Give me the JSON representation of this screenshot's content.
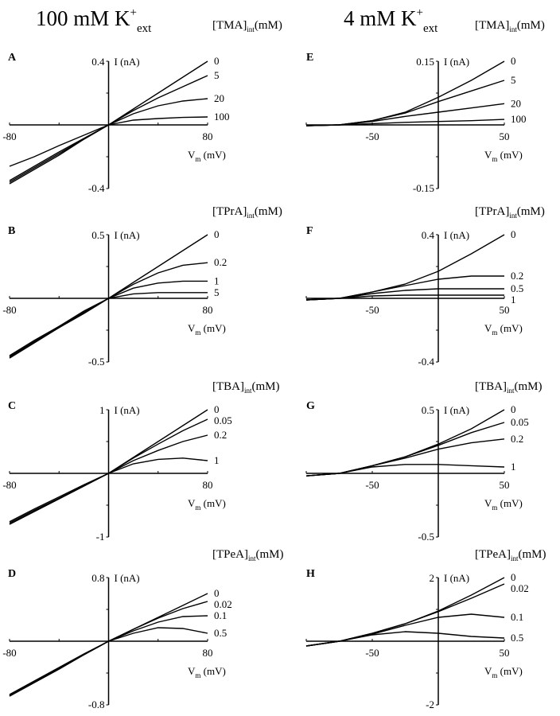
{
  "headers": [
    {
      "main": "100 mM K",
      "sup": "+",
      "sub": "ext"
    },
    {
      "main": "4 mM K",
      "sup": "+",
      "sub": "ext"
    }
  ],
  "chart_data": [
    {
      "type": "line",
      "panel": "A",
      "legend_title": {
        "main": "[TMA]",
        "sub": "int",
        "unit": "(mM)"
      },
      "ylabel": "I (nA)",
      "xlabel": {
        "main": "V",
        "sub": "m",
        "unit": " (mV)"
      },
      "xlim": [
        -80,
        80
      ],
      "ylim": [
        -0.4,
        0.4
      ],
      "xtick_labels": [
        "-80",
        "80"
      ],
      "ytick_labels": [
        "0.4",
        "-0.4"
      ],
      "x": [
        -80,
        -60,
        -40,
        -20,
        0,
        20,
        40,
        60,
        80
      ],
      "series": [
        {
          "name": "0",
          "values": [
            -0.37,
            -0.28,
            -0.19,
            -0.09,
            0,
            0.1,
            0.2,
            0.3,
            0.4
          ]
        },
        {
          "name": "5",
          "values": [
            -0.36,
            -0.27,
            -0.18,
            -0.09,
            0,
            0.09,
            0.17,
            0.24,
            0.31
          ]
        },
        {
          "name": "20",
          "values": [
            -0.35,
            -0.26,
            -0.17,
            -0.085,
            0,
            0.07,
            0.12,
            0.15,
            0.165
          ]
        },
        {
          "name": "100",
          "values": [
            -0.26,
            -0.2,
            -0.13,
            -0.065,
            0,
            0.03,
            0.04,
            0.047,
            0.05
          ]
        }
      ]
    },
    {
      "type": "line",
      "panel": "B",
      "legend_title": {
        "main": "[TPrA]",
        "sub": "int",
        "unit": "(mM)"
      },
      "ylabel": "I (nA)",
      "xlabel": {
        "main": "V",
        "sub": "m",
        "unit": " (mV)"
      },
      "xlim": [
        -80,
        80
      ],
      "ylim": [
        -0.5,
        0.5
      ],
      "xtick_labels": [
        "-80",
        "80"
      ],
      "ytick_labels": [
        "0.5",
        "-0.5"
      ],
      "x": [
        -80,
        -60,
        -40,
        -20,
        0,
        20,
        40,
        60,
        80
      ],
      "series": [
        {
          "name": "0",
          "values": [
            -0.47,
            -0.35,
            -0.23,
            -0.12,
            0,
            0.125,
            0.25,
            0.375,
            0.5
          ]
        },
        {
          "name": "0.2",
          "values": [
            -0.46,
            -0.34,
            -0.23,
            -0.11,
            0,
            0.11,
            0.2,
            0.26,
            0.28
          ]
        },
        {
          "name": "1",
          "values": [
            -0.46,
            -0.34,
            -0.22,
            -0.11,
            0,
            0.08,
            0.12,
            0.135,
            0.135
          ]
        },
        {
          "name": "5",
          "values": [
            -0.45,
            -0.33,
            -0.22,
            -0.1,
            0,
            0.035,
            0.045,
            0.045,
            0.045
          ]
        }
      ]
    },
    {
      "type": "line",
      "panel": "C",
      "legend_title": {
        "main": "[TBA]",
        "sub": "int",
        "unit": "(mM)"
      },
      "ylabel": "I (nA)",
      "xlabel": {
        "main": "V",
        "sub": "m",
        "unit": " (mV)"
      },
      "xlim": [
        -80,
        80
      ],
      "ylim": [
        -1,
        1
      ],
      "xtick_labels": [
        "-80",
        "80"
      ],
      "ytick_labels": [
        "1",
        "-1"
      ],
      "x": [
        -80,
        -60,
        -40,
        -20,
        0,
        20,
        40,
        60,
        80
      ],
      "series": [
        {
          "name": "0",
          "values": [
            -0.8,
            -0.6,
            -0.4,
            -0.2,
            0,
            0.25,
            0.5,
            0.75,
            1.0
          ]
        },
        {
          "name": "0.05",
          "values": [
            -0.8,
            -0.6,
            -0.4,
            -0.2,
            0,
            0.24,
            0.46,
            0.67,
            0.85
          ]
        },
        {
          "name": "0.2",
          "values": [
            -0.78,
            -0.58,
            -0.39,
            -0.19,
            0,
            0.2,
            0.36,
            0.5,
            0.6
          ]
        },
        {
          "name": "1",
          "values": [
            -0.76,
            -0.56,
            -0.37,
            -0.18,
            0,
            0.15,
            0.22,
            0.24,
            0.2
          ]
        }
      ]
    },
    {
      "type": "line",
      "panel": "D",
      "legend_title": {
        "main": "[TPeA]",
        "sub": "int",
        "unit": "(mM)"
      },
      "ylabel": "I (nA)",
      "xlabel": {
        "main": "V",
        "sub": "m",
        "unit": " (mV)"
      },
      "xlim": [
        -80,
        80
      ],
      "ylim": [
        -0.8,
        0.8
      ],
      "xtick_labels": [
        "-80",
        "80"
      ],
      "ytick_labels": [
        "0.8",
        "-0.8"
      ],
      "x": [
        -80,
        -60,
        -40,
        -20,
        0,
        20,
        40,
        60,
        80
      ],
      "series": [
        {
          "name": "0",
          "values": [
            -0.69,
            -0.52,
            -0.35,
            -0.17,
            0,
            0.15,
            0.3,
            0.45,
            0.6
          ]
        },
        {
          "name": "0.02",
          "values": [
            -0.69,
            -0.52,
            -0.35,
            -0.17,
            0,
            0.15,
            0.29,
            0.41,
            0.5
          ]
        },
        {
          "name": "0.1",
          "values": [
            -0.68,
            -0.51,
            -0.34,
            -0.17,
            0,
            0.13,
            0.24,
            0.31,
            0.32
          ]
        },
        {
          "name": "0.5",
          "values": [
            -0.67,
            -0.5,
            -0.33,
            -0.16,
            0,
            0.1,
            0.17,
            0.16,
            0.1
          ]
        }
      ]
    },
    {
      "type": "line",
      "panel": "E",
      "legend_title": {
        "main": "[TMA]",
        "sub": "int",
        "unit": "(mM)"
      },
      "ylabel": "I (nA)",
      "xlabel": {
        "main": "V",
        "sub": "m",
        "unit": " (mV)"
      },
      "xlim": [
        -100,
        50
      ],
      "ylim": [
        -0.15,
        0.15
      ],
      "xtick_labels": [
        "-50",
        "50"
      ],
      "ytick_labels": [
        "0.15",
        "-0.15"
      ],
      "x": [
        -100,
        -75,
        -50,
        -25,
        0,
        25,
        50
      ],
      "series": [
        {
          "name": "0",
          "values": [
            -0.002,
            0,
            0.01,
            0.03,
            0.065,
            0.105,
            0.15
          ]
        },
        {
          "name": "5",
          "values": [
            -0.002,
            0,
            0.01,
            0.028,
            0.055,
            0.08,
            0.105
          ]
        },
        {
          "name": "20",
          "values": [
            -0.002,
            0,
            0.008,
            0.02,
            0.03,
            0.04,
            0.05
          ]
        },
        {
          "name": "100",
          "values": [
            -0.002,
            0,
            0.003,
            0.006,
            0.008,
            0.01,
            0.013
          ]
        }
      ]
    },
    {
      "type": "line",
      "panel": "F",
      "legend_title": {
        "main": "[TPrA]",
        "sub": "int",
        "unit": "(mM)"
      },
      "ylabel": "I (nA)",
      "xlabel": {
        "main": "V",
        "sub": "m",
        "unit": " (mV)"
      },
      "xlim": [
        -100,
        50
      ],
      "ylim": [
        -0.4,
        0.4
      ],
      "xtick_labels": [
        "-50",
        "50"
      ],
      "ytick_labels": [
        "0.4",
        "-0.4"
      ],
      "x": [
        -100,
        -75,
        -50,
        -25,
        0,
        25,
        50
      ],
      "series": [
        {
          "name": "0",
          "values": [
            -0.01,
            0,
            0.04,
            0.09,
            0.17,
            0.28,
            0.4
          ]
        },
        {
          "name": "0.2",
          "values": [
            -0.01,
            0,
            0.04,
            0.08,
            0.12,
            0.14,
            0.14
          ]
        },
        {
          "name": "0.5",
          "values": [
            -0.01,
            0,
            0.03,
            0.05,
            0.06,
            0.06,
            0.06
          ]
        },
        {
          "name": "1",
          "values": [
            -0.01,
            0,
            0.015,
            0.02,
            0.02,
            0.02,
            0.02
          ]
        }
      ]
    },
    {
      "type": "line",
      "panel": "G",
      "legend_title": {
        "main": "[TBA]",
        "sub": "int",
        "unit": "(mM)"
      },
      "ylabel": "I (nA)",
      "xlabel": {
        "main": "V",
        "sub": "m",
        "unit": " (mV)"
      },
      "xlim": [
        -100,
        50
      ],
      "ylim": [
        -0.5,
        0.5
      ],
      "xtick_labels": [
        "-50",
        "50"
      ],
      "ytick_labels": [
        "0.5",
        "-0.5"
      ],
      "x": [
        -100,
        -75,
        -50,
        -25,
        0,
        25,
        50
      ],
      "series": [
        {
          "name": "0",
          "values": [
            -0.02,
            0,
            0.06,
            0.13,
            0.23,
            0.35,
            0.5
          ]
        },
        {
          "name": "0.05",
          "values": [
            -0.02,
            0,
            0.06,
            0.13,
            0.22,
            0.32,
            0.4
          ]
        },
        {
          "name": "0.2",
          "values": [
            -0.02,
            0,
            0.06,
            0.12,
            0.19,
            0.24,
            0.27
          ]
        },
        {
          "name": "1",
          "values": [
            -0.02,
            0,
            0.05,
            0.07,
            0.07,
            0.06,
            0.05
          ]
        }
      ]
    },
    {
      "type": "line",
      "panel": "H",
      "legend_title": {
        "main": "[TPeA]",
        "sub": "int",
        "unit": "(mM)"
      },
      "ylabel": "I (nA)",
      "xlabel": {
        "main": "V",
        "sub": "m",
        "unit": " (mV)"
      },
      "xlim": [
        -100,
        50
      ],
      "ylim": [
        -2,
        2
      ],
      "xtick_labels": [
        "-50",
        "50"
      ],
      "ytick_labels": [
        "2",
        "-2"
      ],
      "x": [
        -100,
        -75,
        -50,
        -25,
        0,
        25,
        50
      ],
      "series": [
        {
          "name": "0",
          "values": [
            -0.15,
            0,
            0.25,
            0.55,
            0.95,
            1.45,
            2.0
          ]
        },
        {
          "name": "0.02",
          "values": [
            -0.15,
            0,
            0.25,
            0.55,
            0.93,
            1.35,
            1.8
          ]
        },
        {
          "name": "0.1",
          "values": [
            -0.15,
            0,
            0.22,
            0.5,
            0.75,
            0.85,
            0.75
          ]
        },
        {
          "name": "0.5",
          "values": [
            -0.15,
            0,
            0.2,
            0.3,
            0.25,
            0.15,
            0.1
          ]
        }
      ]
    }
  ]
}
